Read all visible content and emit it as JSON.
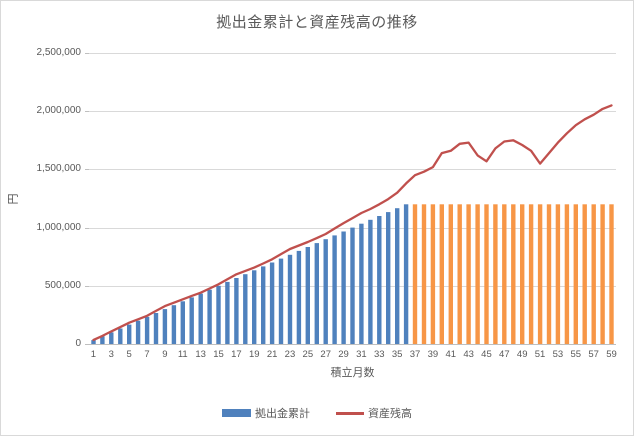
{
  "window": {
    "background": "#FFFFFF",
    "border_color": "#D9D9D9",
    "text_color": "#595959",
    "gridline_color": "#D9D9D9",
    "axis_line_color": "#BFBFBF"
  },
  "chart_data": {
    "type": "combo-bar-line",
    "title": "拠出金累計と資産残高の推移",
    "xlabel": "積立月数",
    "ylabel": "円",
    "ylim": [
      0,
      2500000
    ],
    "y_tick_interval": 500000,
    "y_tick_labels": [
      "0",
      "500,000",
      "1,000,000",
      "1,500,000",
      "2,000,000",
      "2,500,000"
    ],
    "x_tick_labels": [
      "1",
      "3",
      "5",
      "7",
      "9",
      "11",
      "13",
      "15",
      "17",
      "19",
      "21",
      "23",
      "25",
      "27",
      "29",
      "31",
      "33",
      "35",
      "37",
      "39",
      "41",
      "43",
      "45",
      "47",
      "49",
      "51",
      "53",
      "55",
      "57",
      "59"
    ],
    "x": [
      1,
      2,
      3,
      4,
      5,
      6,
      7,
      8,
      9,
      10,
      11,
      12,
      13,
      14,
      15,
      16,
      17,
      18,
      19,
      20,
      21,
      22,
      23,
      24,
      25,
      26,
      27,
      28,
      29,
      30,
      31,
      32,
      33,
      34,
      35,
      36,
      37,
      38,
      39,
      40,
      41,
      42,
      43,
      44,
      45,
      46,
      47,
      48,
      49,
      50,
      51,
      52,
      53,
      54,
      55,
      56,
      57,
      58,
      59
    ],
    "grid": "horizontal",
    "legend_position": "bottom",
    "series": [
      {
        "name": "拠出金累計",
        "type": "bar",
        "color_contribution_phase": "#4F81BD",
        "color_hold_phase": "#F79646",
        "hold_phase_start_month": 37,
        "monthly_contribution": 33333,
        "values": [
          33333,
          66667,
          100000,
          133333,
          166667,
          200000,
          233333,
          266667,
          300000,
          333333,
          366667,
          400000,
          433333,
          466667,
          500000,
          533333,
          566667,
          600000,
          633333,
          666667,
          700000,
          733333,
          766667,
          800000,
          833333,
          866667,
          900000,
          933333,
          966667,
          1000000,
          1033333,
          1066667,
          1100000,
          1133333,
          1166667,
          1200000,
          1200000,
          1200000,
          1200000,
          1200000,
          1200000,
          1200000,
          1200000,
          1200000,
          1200000,
          1200000,
          1200000,
          1200000,
          1200000,
          1200000,
          1200000,
          1200000,
          1200000,
          1200000,
          1200000,
          1200000,
          1200000,
          1200000,
          1200000
        ]
      },
      {
        "name": "資産残高",
        "type": "line",
        "color": "#C0504D",
        "values": [
          35000,
          70000,
          108000,
          145000,
          183000,
          212000,
          242000,
          284000,
          326000,
          355000,
          384000,
          413000,
          441000,
          477000,
          513000,
          556000,
          599000,
          628000,
          656000,
          692000,
          728000,
          772000,
          816000,
          846000,
          876000,
          910000,
          945000,
          992000,
          1039000,
          1082000,
          1125000,
          1160000,
          1200000,
          1245000,
          1300000,
          1380000,
          1450000,
          1480000,
          1520000,
          1640000,
          1660000,
          1720000,
          1730000,
          1620000,
          1570000,
          1680000,
          1740000,
          1750000,
          1710000,
          1660000,
          1550000,
          1640000,
          1730000,
          1810000,
          1880000,
          1930000,
          1970000,
          2020000,
          2050000
        ]
      }
    ]
  }
}
